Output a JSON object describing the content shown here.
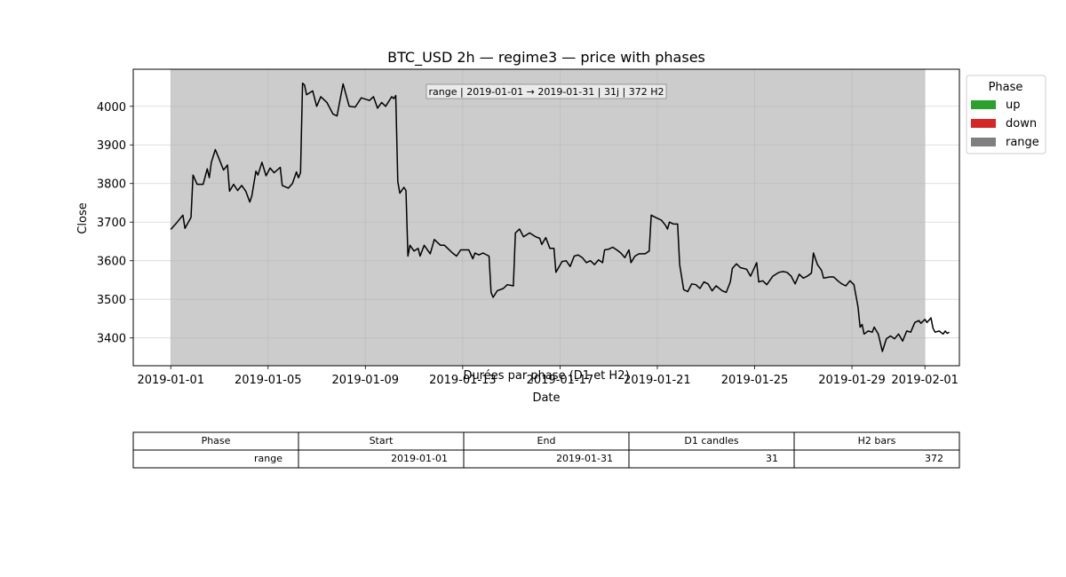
{
  "chart_data": {
    "type": "line",
    "title": "BTC_USD 2h — regime3 — price with phases",
    "xlabel": "Date",
    "ylabel": "Close",
    "x_tick_labels": [
      "2019-01-01",
      "2019-01-05",
      "2019-01-09",
      "2019-01-13",
      "2019-01-17",
      "2019-01-21",
      "2019-01-25",
      "2019-01-29",
      "2019-02-01"
    ],
    "y_tick_labels": [
      "3400",
      "3500",
      "3600",
      "3700",
      "3800",
      "3900",
      "4000"
    ],
    "x_range": [
      "2018-12-30T11:00",
      "2019-02-02T10:00"
    ],
    "ylim": [
      3328,
      4096
    ],
    "grid": true,
    "line_color": "#000000",
    "shaded_phase": {
      "label": "range",
      "start": "2019-01-01",
      "end": "2019-02-01",
      "color": "#cccccc"
    },
    "annotation": "range | 2019-01-01 → 2019-01-31 | 31j | 372 H2",
    "legend": {
      "title": "Phase",
      "placement": "upper-right-outside",
      "entries": [
        {
          "label": "up",
          "color": "#2ca02c"
        },
        {
          "label": "down",
          "color": "#d62728"
        },
        {
          "label": "range",
          "color": "#7f7f7f"
        }
      ]
    },
    "series": [
      {
        "points": [
          [
            "2019-01-01T00:00",
            3681
          ],
          [
            "2019-01-01T06:00",
            3699
          ],
          [
            "2019-01-01T12:00",
            3718
          ],
          [
            "2019-01-01T14:00",
            3684
          ],
          [
            "2019-01-01T20:00",
            3712
          ],
          [
            "2019-01-01T22:00",
            3822
          ],
          [
            "2019-01-02T02:00",
            3798
          ],
          [
            "2019-01-02T08:00",
            3798
          ],
          [
            "2019-01-02T12:00",
            3838
          ],
          [
            "2019-01-02T14:00",
            3815
          ],
          [
            "2019-01-02T16:00",
            3855
          ],
          [
            "2019-01-02T20:00",
            3888
          ],
          [
            "2019-01-03T00:00",
            3862
          ],
          [
            "2019-01-03T04:00",
            3835
          ],
          [
            "2019-01-03T08:00",
            3848
          ],
          [
            "2019-01-03T10:00",
            3780
          ],
          [
            "2019-01-03T14:00",
            3798
          ],
          [
            "2019-01-03T18:00",
            3782
          ],
          [
            "2019-01-03T22:00",
            3795
          ],
          [
            "2019-01-04T02:00",
            3780
          ],
          [
            "2019-01-04T06:00",
            3752
          ],
          [
            "2019-01-04T08:00",
            3768
          ],
          [
            "2019-01-04T12:00",
            3832
          ],
          [
            "2019-01-04T14:00",
            3822
          ],
          [
            "2019-01-04T18:00",
            3855
          ],
          [
            "2019-01-04T22:00",
            3820
          ],
          [
            "2019-01-05T02:00",
            3840
          ],
          [
            "2019-01-05T06:00",
            3828
          ],
          [
            "2019-01-05T12:00",
            3842
          ],
          [
            "2019-01-05T14:00",
            3795
          ],
          [
            "2019-01-05T20:00",
            3788
          ],
          [
            "2019-01-06T00:00",
            3800
          ],
          [
            "2019-01-06T04:00",
            3830
          ],
          [
            "2019-01-06T06:00",
            3815
          ],
          [
            "2019-01-06T08:00",
            3828
          ],
          [
            "2019-01-06T10:00",
            4060
          ],
          [
            "2019-01-06T12:00",
            4055
          ],
          [
            "2019-01-06T14:00",
            4030
          ],
          [
            "2019-01-06T20:00",
            4040
          ],
          [
            "2019-01-07T00:00",
            4000
          ],
          [
            "2019-01-07T04:00",
            4025
          ],
          [
            "2019-01-07T10:00",
            4010
          ],
          [
            "2019-01-07T16:00",
            3980
          ],
          [
            "2019-01-07T20:00",
            3975
          ],
          [
            "2019-01-08T02:00",
            4058
          ],
          [
            "2019-01-08T08:00",
            4000
          ],
          [
            "2019-01-08T14:00",
            3998
          ],
          [
            "2019-01-08T20:00",
            4022
          ],
          [
            "2019-01-09T04:00",
            4015
          ],
          [
            "2019-01-09T08:00",
            4025
          ],
          [
            "2019-01-09T12:00",
            3995
          ],
          [
            "2019-01-09T16:00",
            4010
          ],
          [
            "2019-01-09T20:00",
            4000
          ],
          [
            "2019-01-10T02:00",
            4025
          ],
          [
            "2019-01-10T04:00",
            4020
          ],
          [
            "2019-01-10T06:00",
            4028
          ],
          [
            "2019-01-10T08:00",
            3805
          ],
          [
            "2019-01-10T10:00",
            3775
          ],
          [
            "2019-01-10T14:00",
            3790
          ],
          [
            "2019-01-10T16:00",
            3782
          ],
          [
            "2019-01-10T18:00",
            3612
          ],
          [
            "2019-01-10T20:00",
            3640
          ],
          [
            "2019-01-11T00:00",
            3625
          ],
          [
            "2019-01-11T04:00",
            3632
          ],
          [
            "2019-01-11T06:00",
            3612
          ],
          [
            "2019-01-11T10:00",
            3640
          ],
          [
            "2019-01-11T16:00",
            3618
          ],
          [
            "2019-01-11T20:00",
            3655
          ],
          [
            "2019-01-12T02:00",
            3640
          ],
          [
            "2019-01-12T06:00",
            3640
          ],
          [
            "2019-01-12T10:00",
            3630
          ],
          [
            "2019-01-12T14:00",
            3620
          ],
          [
            "2019-01-12T18:00",
            3612
          ],
          [
            "2019-01-12T22:00",
            3628
          ],
          [
            "2019-01-13T06:00",
            3628
          ],
          [
            "2019-01-13T10:00",
            3605
          ],
          [
            "2019-01-13T12:00",
            3620
          ],
          [
            "2019-01-13T16:00",
            3615
          ],
          [
            "2019-01-13T20:00",
            3620
          ],
          [
            "2019-01-14T02:00",
            3612
          ],
          [
            "2019-01-14T04:00",
            3518
          ],
          [
            "2019-01-14T06:00",
            3505
          ],
          [
            "2019-01-14T10:00",
            3522
          ],
          [
            "2019-01-14T16:00",
            3528
          ],
          [
            "2019-01-14T20:00",
            3538
          ],
          [
            "2019-01-15T02:00",
            3535
          ],
          [
            "2019-01-15T04:00",
            3672
          ],
          [
            "2019-01-15T08:00",
            3682
          ],
          [
            "2019-01-15T12:00",
            3662
          ],
          [
            "2019-01-15T18:00",
            3672
          ],
          [
            "2019-01-16T00:00",
            3662
          ],
          [
            "2019-01-16T04:00",
            3658
          ],
          [
            "2019-01-16T06:00",
            3642
          ],
          [
            "2019-01-16T10:00",
            3660
          ],
          [
            "2019-01-16T14:00",
            3632
          ],
          [
            "2019-01-16T18:00",
            3632
          ],
          [
            "2019-01-16T20:00",
            3570
          ],
          [
            "2019-01-17T02:00",
            3598
          ],
          [
            "2019-01-17T06:00",
            3600
          ],
          [
            "2019-01-17T10:00",
            3585
          ],
          [
            "2019-01-17T14:00",
            3612
          ],
          [
            "2019-01-17T18:00",
            3615
          ],
          [
            "2019-01-17T22:00",
            3608
          ],
          [
            "2019-01-18T02:00",
            3595
          ],
          [
            "2019-01-18T06:00",
            3600
          ],
          [
            "2019-01-18T10:00",
            3590
          ],
          [
            "2019-01-18T14:00",
            3602
          ],
          [
            "2019-01-18T18:00",
            3595
          ],
          [
            "2019-01-18T20:00",
            3628
          ],
          [
            "2019-01-19T00:00",
            3630
          ],
          [
            "2019-01-19T04:00",
            3635
          ],
          [
            "2019-01-19T08:00",
            3628
          ],
          [
            "2019-01-19T12:00",
            3620
          ],
          [
            "2019-01-19T16:00",
            3608
          ],
          [
            "2019-01-19T20:00",
            3628
          ],
          [
            "2019-01-19T22:00",
            3595
          ],
          [
            "2019-01-20T02:00",
            3612
          ],
          [
            "2019-01-20T06:00",
            3618
          ],
          [
            "2019-01-20T12:00",
            3618
          ],
          [
            "2019-01-20T16:00",
            3625
          ],
          [
            "2019-01-20T18:00",
            3718
          ],
          [
            "2019-01-21T00:00",
            3710
          ],
          [
            "2019-01-21T04:00",
            3705
          ],
          [
            "2019-01-21T08:00",
            3692
          ],
          [
            "2019-01-21T10:00",
            3682
          ],
          [
            "2019-01-21T12:00",
            3700
          ],
          [
            "2019-01-21T16:00",
            3695
          ],
          [
            "2019-01-21T20:00",
            3695
          ],
          [
            "2019-01-21T22:00",
            3590
          ],
          [
            "2019-01-22T02:00",
            3525
          ],
          [
            "2019-01-22T06:00",
            3520
          ],
          [
            "2019-01-22T10:00",
            3540
          ],
          [
            "2019-01-22T14:00",
            3538
          ],
          [
            "2019-01-22T18:00",
            3528
          ],
          [
            "2019-01-22T22:00",
            3545
          ],
          [
            "2019-01-23T02:00",
            3540
          ],
          [
            "2019-01-23T06:00",
            3522
          ],
          [
            "2019-01-23T10:00",
            3535
          ],
          [
            "2019-01-23T16:00",
            3522
          ],
          [
            "2019-01-23T20:00",
            3518
          ],
          [
            "2019-01-24T00:00",
            3545
          ],
          [
            "2019-01-24T02:00",
            3580
          ],
          [
            "2019-01-24T06:00",
            3592
          ],
          [
            "2019-01-24T10:00",
            3582
          ],
          [
            "2019-01-24T16:00",
            3578
          ],
          [
            "2019-01-24T20:00",
            3560
          ],
          [
            "2019-01-25T02:00",
            3595
          ],
          [
            "2019-01-25T04:00",
            3545
          ],
          [
            "2019-01-25T08:00",
            3548
          ],
          [
            "2019-01-25T12:00",
            3538
          ],
          [
            "2019-01-25T18:00",
            3560
          ],
          [
            "2019-01-26T00:00",
            3570
          ],
          [
            "2019-01-26T04:00",
            3572
          ],
          [
            "2019-01-26T08:00",
            3570
          ],
          [
            "2019-01-26T12:00",
            3560
          ],
          [
            "2019-01-26T16:00",
            3540
          ],
          [
            "2019-01-26T20:00",
            3565
          ],
          [
            "2019-01-27T00:00",
            3555
          ],
          [
            "2019-01-27T04:00",
            3560
          ],
          [
            "2019-01-27T08:00",
            3568
          ],
          [
            "2019-01-27T10:00",
            3620
          ],
          [
            "2019-01-27T14:00",
            3590
          ],
          [
            "2019-01-27T18:00",
            3575
          ],
          [
            "2019-01-27T20:00",
            3555
          ],
          [
            "2019-01-28T02:00",
            3558
          ],
          [
            "2019-01-28T06:00",
            3558
          ],
          [
            "2019-01-28T10:00",
            3548
          ],
          [
            "2019-01-28T14:00",
            3540
          ],
          [
            "2019-01-28T18:00",
            3535
          ],
          [
            "2019-01-28T22:00",
            3548
          ],
          [
            "2019-01-29T02:00",
            3538
          ],
          [
            "2019-01-29T06:00",
            3480
          ],
          [
            "2019-01-29T08:00",
            3428
          ],
          [
            "2019-01-29T10:00",
            3435
          ],
          [
            "2019-01-29T12:00",
            3410
          ],
          [
            "2019-01-29T16:00",
            3418
          ],
          [
            "2019-01-29T20:00",
            3415
          ],
          [
            "2019-01-29T22:00",
            3428
          ],
          [
            "2019-01-30T02:00",
            3410
          ],
          [
            "2019-01-30T06:00",
            3365
          ],
          [
            "2019-01-30T10:00",
            3398
          ],
          [
            "2019-01-30T14:00",
            3405
          ],
          [
            "2019-01-30T18:00",
            3398
          ],
          [
            "2019-01-30T22:00",
            3410
          ],
          [
            "2019-01-31T02:00",
            3392
          ],
          [
            "2019-01-31T06:00",
            3418
          ],
          [
            "2019-01-31T10:00",
            3415
          ],
          [
            "2019-01-31T14:00",
            3440
          ],
          [
            "2019-01-31T18:00",
            3445
          ],
          [
            "2019-01-31T20:00",
            3438
          ],
          [
            "2019-02-01T00:00",
            3448
          ],
          [
            "2019-02-01T02:00",
            3440
          ],
          [
            "2019-02-01T06:00",
            3452
          ],
          [
            "2019-02-01T08:00",
            3425
          ],
          [
            "2019-02-01T10:00",
            3415
          ],
          [
            "2019-02-01T14:00",
            3418
          ],
          [
            "2019-02-01T18:00",
            3410
          ],
          [
            "2019-02-01T20:00",
            3418
          ],
          [
            "2019-02-01T22:00",
            3412
          ],
          [
            "2019-02-02T00:00",
            3415
          ]
        ]
      }
    ]
  },
  "table": {
    "title": "Durées par phase (D1 et H2)",
    "columns": [
      "Phase",
      "Start",
      "End",
      "D1 candles",
      "H2 bars"
    ],
    "rows": [
      [
        "range",
        "2019-01-01",
        "2019-01-31",
        "31",
        "372"
      ]
    ]
  }
}
